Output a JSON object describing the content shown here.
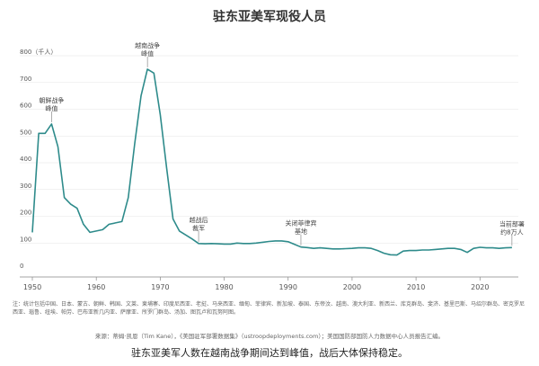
{
  "title": "驻东亚美军现役人员",
  "note": "注：统计包括中国、日本、蒙古、朝鲜、韩国、文莱、柬埔寨、印度尼西亚、老挝、马来西亚、缅甸、菲律宾、新加坡、泰国、东帝汶、越南、澳大利亚、新西兰、库克群岛、斐济、基里巴斯、马绍尔群岛、密克罗尼西亚、瑙鲁、纽埃、帕劳、巴布亚新几内亚、萨摩亚、所罗门群岛、汤加、图瓦卢和瓦努阿图。",
  "source": "来源：蒂姆·凯恩（Tim Kane），《美国驻军部署数据集》（ustroopdeployments.com）；美国国防部国防人力数据中心人员报告汇编。",
  "caption": "驻东亚美军人数在越南战争期间达到峰值，战后大体保持稳定。",
  "chart_data": {
    "type": "line",
    "title": "驻东亚美军现役人员",
    "ylabel": "800（千人）",
    "ylim": [
      0,
      800
    ],
    "xlim": [
      1950,
      2026
    ],
    "yticks": [
      0,
      100,
      200,
      300,
      400,
      500,
      600,
      700,
      800
    ],
    "xticks": [
      1950,
      1960,
      1970,
      1980,
      1990,
      2000,
      2010,
      2020
    ],
    "series": [
      {
        "color": "#2e8b8b",
        "x": [
          1950,
          1951,
          1952,
          1953,
          1954,
          1955,
          1956,
          1957,
          1958,
          1959,
          1960,
          1961,
          1962,
          1963,
          1964,
          1965,
          1966,
          1967,
          1968,
          1969,
          1970,
          1971,
          1972,
          1973,
          1974,
          1975,
          1976,
          1977,
          1978,
          1979,
          1980,
          1981,
          1982,
          1983,
          1984,
          1985,
          1986,
          1987,
          1988,
          1989,
          1990,
          1991,
          1992,
          1993,
          1994,
          1995,
          1996,
          1997,
          1998,
          1999,
          2000,
          2001,
          2002,
          2003,
          2004,
          2005,
          2006,
          2007,
          2008,
          2009,
          2010,
          2011,
          2012,
          2013,
          2014,
          2015,
          2016,
          2017,
          2018,
          2019,
          2020,
          2021,
          2022,
          2023,
          2024,
          2025
        ],
        "y": [
          140,
          510,
          510,
          545,
          460,
          270,
          245,
          230,
          170,
          140,
          145,
          150,
          170,
          175,
          180,
          270,
          470,
          650,
          750,
          735,
          580,
          380,
          190,
          145,
          130,
          115,
          98,
          97,
          98,
          97,
          96,
          96,
          100,
          98,
          98,
          100,
          103,
          106,
          108,
          108,
          105,
          95,
          85,
          83,
          80,
          82,
          80,
          78,
          78,
          79,
          80,
          82,
          82,
          80,
          72,
          62,
          56,
          55,
          70,
          72,
          72,
          74,
          74,
          76,
          78,
          80,
          80,
          76,
          65,
          80,
          84,
          82,
          82,
          80,
          82,
          83
        ]
      }
    ],
    "annotations": [
      {
        "text": [
          "越南战争",
          "峰值"
        ],
        "x": 1968,
        "y": 750
      },
      {
        "text": [
          "朝鲜战争",
          "峰值"
        ],
        "x": 1953,
        "y": 545
      },
      {
        "text": [
          "越战后",
          "裁军"
        ],
        "x": 1976,
        "y": 98
      },
      {
        "text": [
          "关闭菲律宾",
          "基地"
        ],
        "x": 1992,
        "y": 85
      },
      {
        "text": [
          "当前部署",
          "约8万人"
        ],
        "x": 2025,
        "y": 83
      }
    ]
  }
}
